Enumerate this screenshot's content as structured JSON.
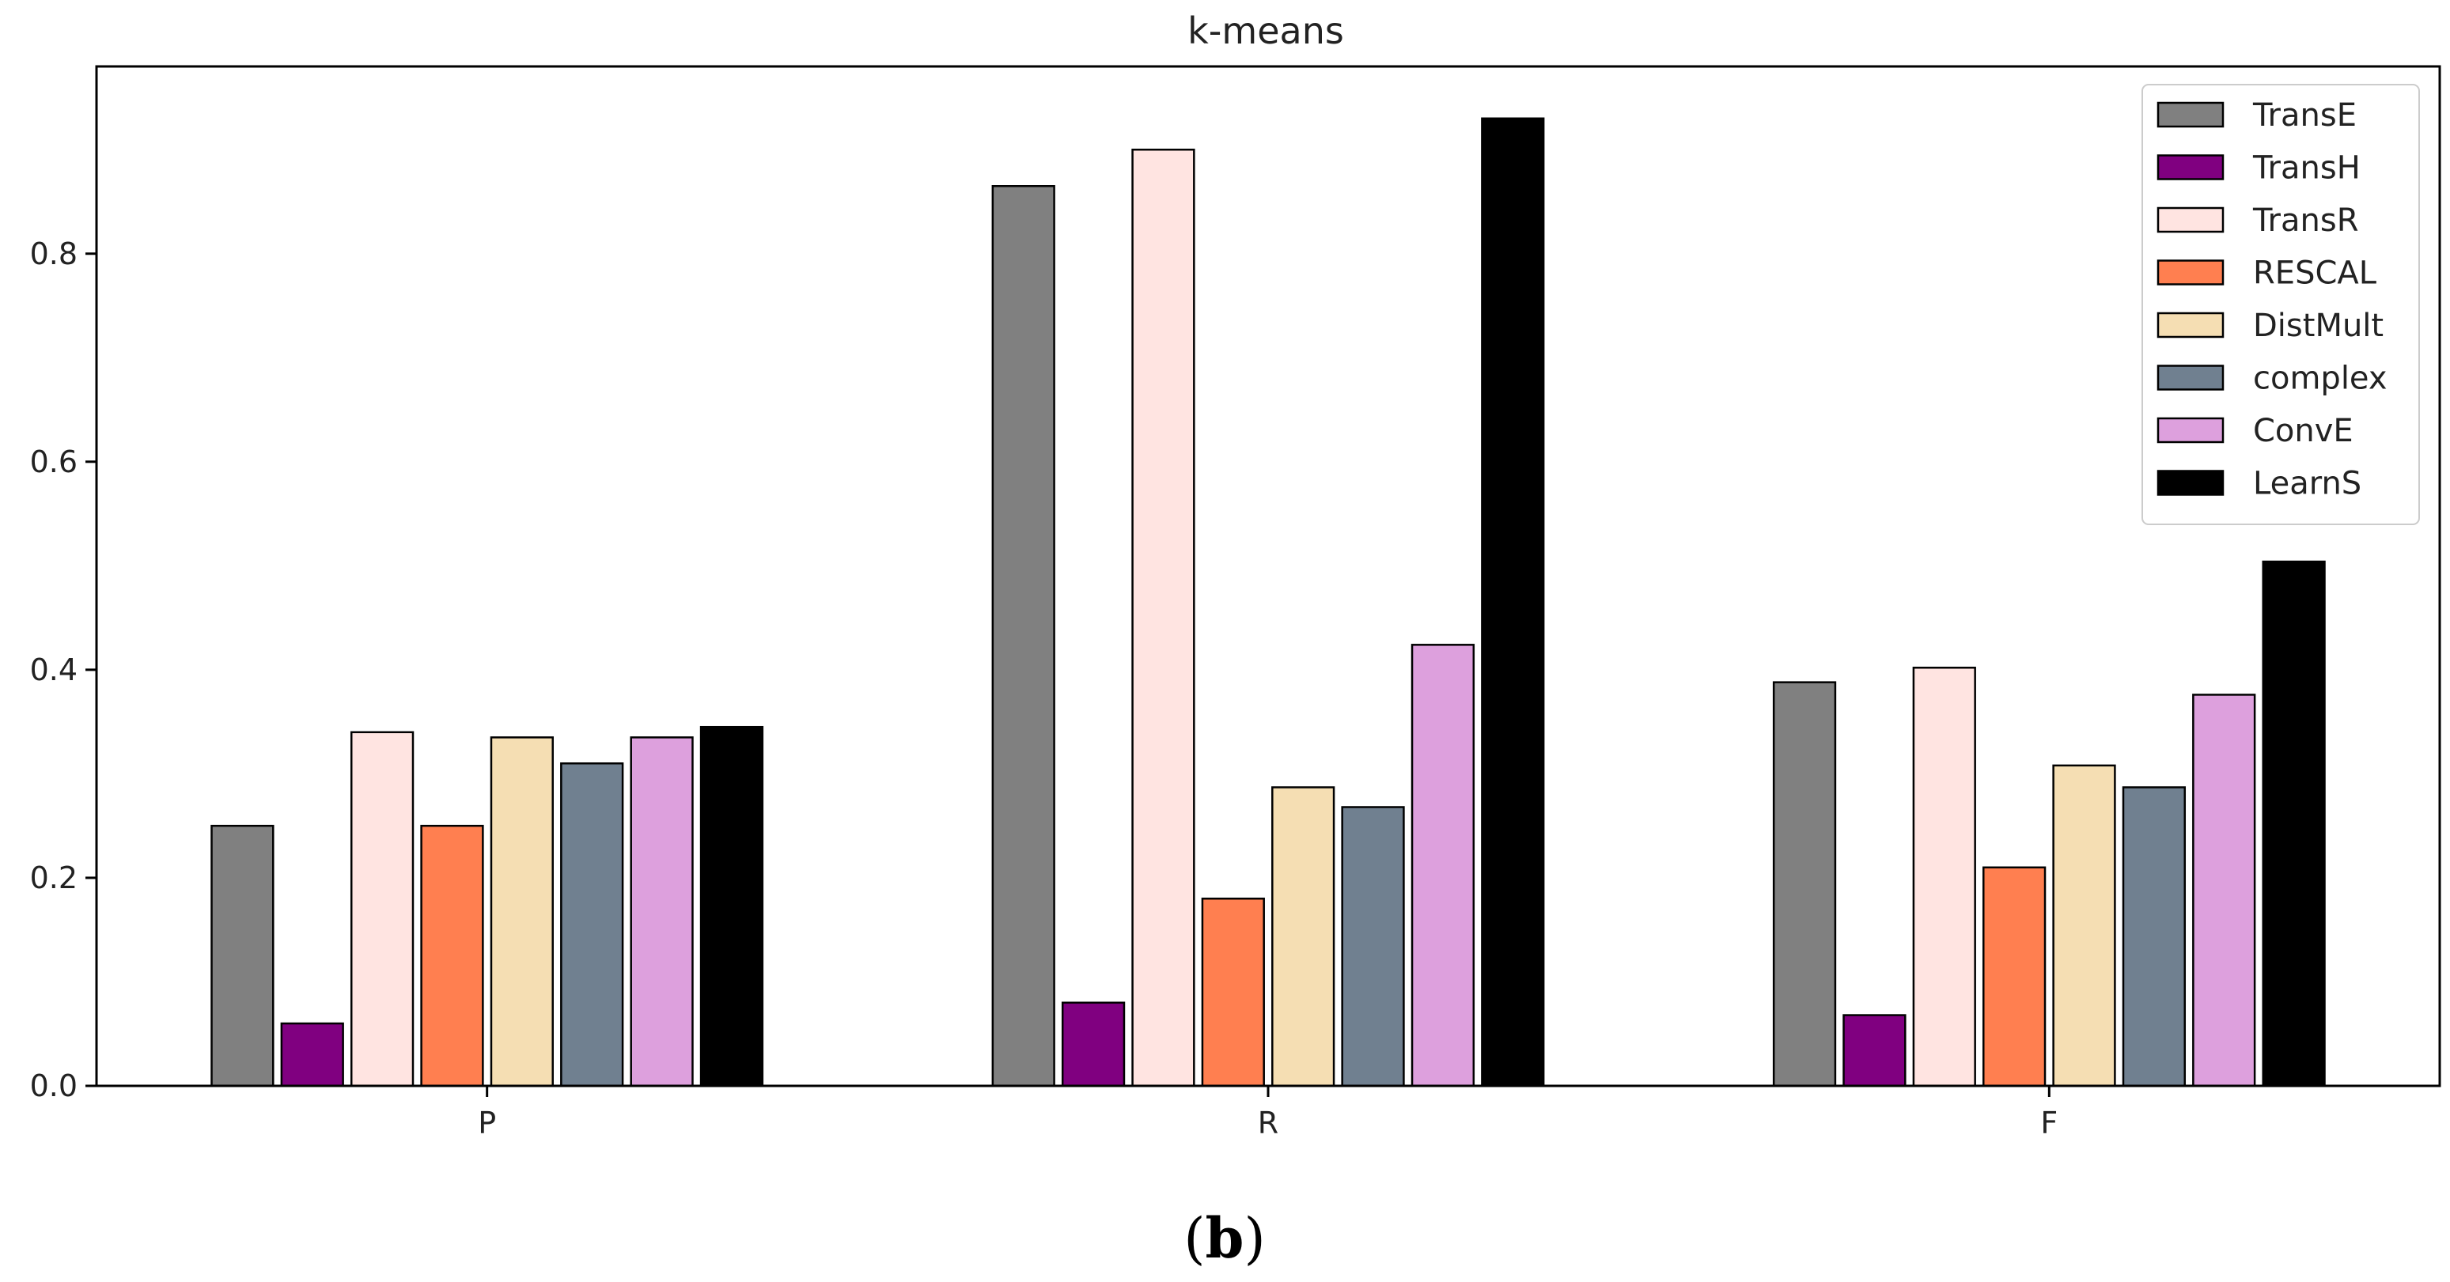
{
  "chart_data": {
    "type": "bar",
    "title": "k-means",
    "xlabel": "",
    "ylabel": "",
    "categories": [
      "P",
      "R",
      "F"
    ],
    "ylim": [
      0,
      0.98
    ],
    "yticks": [
      "0.0",
      "0.2",
      "0.4",
      "0.6",
      "0.8"
    ],
    "legend_position": "top-right",
    "grid": false,
    "series": [
      {
        "name": "TransE",
        "color": "#808080",
        "values": [
          0.25,
          0.865,
          0.388
        ]
      },
      {
        "name": "TransH",
        "color": "#800080",
        "values": [
          0.06,
          0.08,
          0.068
        ]
      },
      {
        "name": "TransR",
        "color": "#ffe4e1",
        "values": [
          0.34,
          0.9,
          0.402
        ]
      },
      {
        "name": "RESCAL",
        "color": "#ff7f50",
        "values": [
          0.25,
          0.18,
          0.21
        ]
      },
      {
        "name": "DistMult",
        "color": "#f5deb3",
        "values": [
          0.335,
          0.287,
          0.308
        ]
      },
      {
        "name": "complex",
        "color": "#708090",
        "values": [
          0.31,
          0.268,
          0.287
        ]
      },
      {
        "name": "ConvE",
        "color": "#dda0dd",
        "values": [
          0.335,
          0.424,
          0.376
        ]
      },
      {
        "name": "LearnS",
        "color": "#000000",
        "values": [
          0.345,
          0.93,
          0.504
        ]
      }
    ]
  },
  "caption": {
    "open": "(",
    "label": "b",
    "close": ")"
  }
}
